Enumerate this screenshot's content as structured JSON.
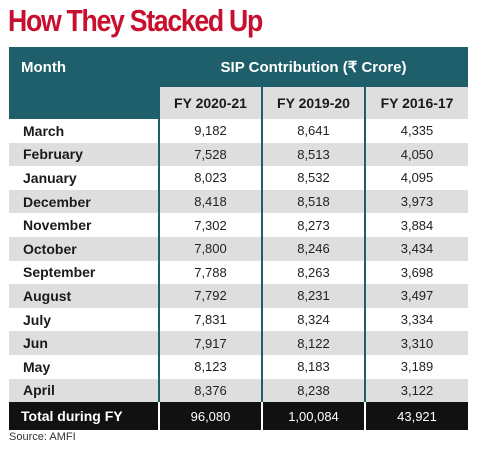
{
  "title": "How They Stacked Up",
  "source": "Source: AMFI",
  "chart_data": {
    "type": "table",
    "title": "How They Stacked Up",
    "row_header": "Month",
    "group_header": "SIP Contribution (₹ Crore)",
    "columns": [
      "FY 2020-21",
      "FY 2019-20",
      "FY 2016-17"
    ],
    "rows": [
      {
        "month": "March",
        "values": [
          "9,182",
          "8,641",
          "4,335"
        ]
      },
      {
        "month": "February",
        "values": [
          "7,528",
          "8,513",
          "4,050"
        ]
      },
      {
        "month": "January",
        "values": [
          "8,023",
          "8,532",
          "4,095"
        ]
      },
      {
        "month": "December",
        "values": [
          "8,418",
          "8,518",
          "3,973"
        ]
      },
      {
        "month": "November",
        "values": [
          "7,302",
          "8,273",
          "3,884"
        ]
      },
      {
        "month": "October",
        "values": [
          "7,800",
          "8,246",
          "3,434"
        ]
      },
      {
        "month": "September",
        "values": [
          "7,788",
          "8,263",
          "3,698"
        ]
      },
      {
        "month": "August",
        "values": [
          "7,792",
          "8,231",
          "3,497"
        ]
      },
      {
        "month": "July",
        "values": [
          "7,831",
          "8,324",
          "3,334"
        ]
      },
      {
        "month": "Jun",
        "values": [
          "7,917",
          "8,122",
          "3,310"
        ]
      },
      {
        "month": "May",
        "values": [
          "8,123",
          "8,183",
          "3,189"
        ]
      },
      {
        "month": "April",
        "values": [
          "8,376",
          "8,238",
          "3,122"
        ]
      }
    ],
    "total": {
      "label": "Total during FY",
      "values": [
        "96,080",
        "1,00,084",
        "43,921"
      ]
    }
  },
  "colors": {
    "title": "#c8102e",
    "header": "#1f5f6b",
    "stripe": "#dedede",
    "total_row": "#111111"
  }
}
